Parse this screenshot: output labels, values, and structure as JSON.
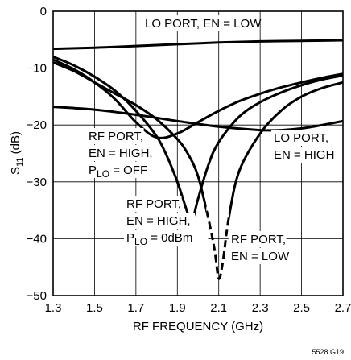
{
  "chart_data": {
    "type": "line",
    "title": "",
    "xlabel": "RF FREQUENCY (GHz)",
    "ylabel": {
      "main": "S",
      "sub": "11",
      "unit": " (dB)"
    },
    "xlim": [
      1.3,
      2.7
    ],
    "ylim": [
      -50,
      0
    ],
    "x_ticks": [
      "1.3",
      "1.5",
      "1.7",
      "1.9",
      "2.1",
      "2.3",
      "2.5",
      "2.7"
    ],
    "y_ticks": [
      "0",
      "−10",
      "−20",
      "−30",
      "−40",
      "−50"
    ],
    "grid": true,
    "legend": "none",
    "series": [
      {
        "x": [
          1.3,
          1.5,
          1.7,
          1.9,
          2.1,
          2.3,
          2.5,
          2.7
        ],
        "y": [
          -6.6,
          -6.4,
          -6.1,
          -5.8,
          -5.5,
          -5.3,
          -5.2,
          -5.1
        ]
      },
      {
        "x": [
          1.3,
          1.4,
          1.5,
          1.6,
          1.7,
          1.8,
          1.9,
          2.0,
          2.1,
          2.2,
          2.3,
          2.4,
          2.5,
          2.6,
          2.7
        ],
        "y": [
          -8.5,
          -10.2,
          -12.5,
          -15.5,
          -19.5,
          -22.2,
          -21.5,
          -19.5,
          -17.5,
          -15.8,
          -14.5,
          -13.4,
          -12.5,
          -11.7,
          -11.0
        ]
      },
      {
        "x": [
          1.3,
          1.4,
          1.5,
          1.6,
          1.7,
          1.8,
          1.85,
          1.9,
          1.95,
          1.97,
          2.0,
          2.05,
          2.1,
          2.2,
          2.3,
          2.4,
          2.5,
          2.6,
          2.7
        ],
        "y": [
          -8.0,
          -9.5,
          -11.5,
          -14.0,
          -17.5,
          -22.0,
          -25.5,
          -30.0,
          -35.5,
          -37.0,
          -33.0,
          -27.0,
          -23.0,
          -18.5,
          -16.0,
          -14.3,
          -13.0,
          -12.0,
          -11.3
        ]
      },
      {
        "x": [
          1.3,
          1.4,
          1.5,
          1.6,
          1.7,
          1.8,
          1.9,
          1.95,
          2.0,
          2.05,
          2.08,
          2.1,
          2.12,
          2.15,
          2.2,
          2.3,
          2.4,
          2.5,
          2.6,
          2.7
        ],
        "y": [
          -9.0,
          -10.5,
          -12.5,
          -14.5,
          -16.5,
          -19.0,
          -22.5,
          -25.0,
          -29.0,
          -36.5,
          -42.0,
          -47.0,
          -44.0,
          -36.0,
          -28.0,
          -21.5,
          -17.5,
          -15.0,
          -13.5,
          -12.5
        ],
        "dashed_x_range": [
          2.04,
          2.15
        ]
      },
      {
        "x": [
          1.3,
          1.5,
          1.7,
          1.9,
          2.1,
          2.3,
          2.4,
          2.5,
          2.6,
          2.7
        ],
        "y": [
          -16.8,
          -17.3,
          -18.2,
          -19.3,
          -20.3,
          -20.9,
          -20.9,
          -20.6,
          -20.0,
          -19.3
        ]
      }
    ],
    "annotations": [
      {
        "lines": [
          "LO PORT, EN = LOW"
        ]
      },
      {
        "lines": [
          "RF PORT,",
          "EN = HIGH,",
          "P|LO| = OFF"
        ]
      },
      {
        "lines": [
          "LO PORT,",
          "EN = HIGH"
        ]
      },
      {
        "lines": [
          "RF PORT,",
          "EN = HIGH,",
          "P|LO| = 0dBm"
        ]
      },
      {
        "lines": [
          "RF PORT,",
          "EN = LOW"
        ]
      }
    ]
  },
  "figure_id": "5528 G19"
}
